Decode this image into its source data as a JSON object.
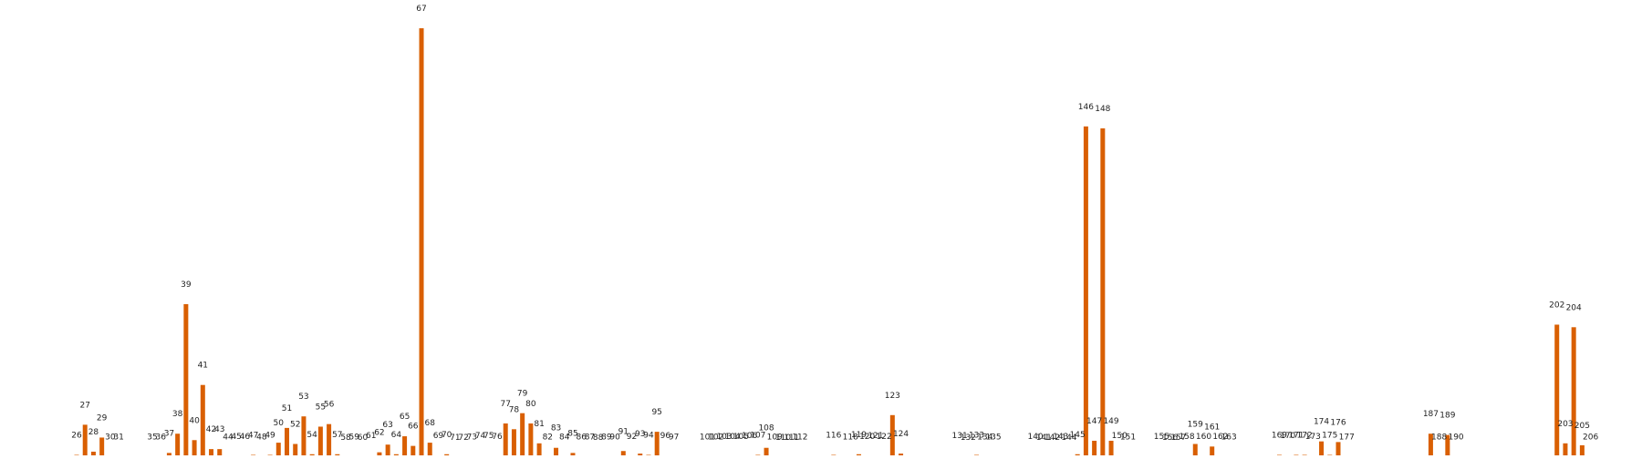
{
  "chart_data": {
    "type": "bar",
    "title": "",
    "xlabel": "",
    "ylabel": "",
    "ylim": [
      0,
      68
    ],
    "bar_color": "#d95f02",
    "grid": false,
    "legend": "none",
    "axes_visible": false,
    "x_range": [
      15,
      220
    ],
    "points": [
      {
        "x": 26,
        "v": 0.5
      },
      {
        "x": 27,
        "v": 5.2
      },
      {
        "x": 28,
        "v": 1.0
      },
      {
        "x": 29,
        "v": 3.2
      },
      {
        "x": 30,
        "v": 0.2
      },
      {
        "x": 31,
        "v": 0.2
      },
      {
        "x": 35,
        "v": 0.2
      },
      {
        "x": 36,
        "v": 0.2
      },
      {
        "x": 37,
        "v": 0.8
      },
      {
        "x": 38,
        "v": 3.8
      },
      {
        "x": 39,
        "v": 24.0
      },
      {
        "x": 40,
        "v": 2.8
      },
      {
        "x": 41,
        "v": 11.4
      },
      {
        "x": 42,
        "v": 1.4
      },
      {
        "x": 43,
        "v": 1.4
      },
      {
        "x": 44,
        "v": 0.2
      },
      {
        "x": 45,
        "v": 0.3
      },
      {
        "x": 46,
        "v": 0.3
      },
      {
        "x": 47,
        "v": 0.5
      },
      {
        "x": 48,
        "v": 0.2
      },
      {
        "x": 49,
        "v": 0.5
      },
      {
        "x": 50,
        "v": 2.4
      },
      {
        "x": 51,
        "v": 4.7
      },
      {
        "x": 52,
        "v": 2.2
      },
      {
        "x": 53,
        "v": 6.5
      },
      {
        "x": 54,
        "v": 0.6
      },
      {
        "x": 55,
        "v": 4.9
      },
      {
        "x": 56,
        "v": 5.3
      },
      {
        "x": 57,
        "v": 0.6
      },
      {
        "x": 58,
        "v": 0.1
      },
      {
        "x": 59,
        "v": 0.2
      },
      {
        "x": 60,
        "v": 0.1
      },
      {
        "x": 61,
        "v": 0.4
      },
      {
        "x": 62,
        "v": 0.9
      },
      {
        "x": 63,
        "v": 2.1
      },
      {
        "x": 64,
        "v": 0.6
      },
      {
        "x": 65,
        "v": 3.4
      },
      {
        "x": 66,
        "v": 1.9
      },
      {
        "x": 67,
        "v": 67.0
      },
      {
        "x": 68,
        "v": 2.4
      },
      {
        "x": 69,
        "v": 0.4
      },
      {
        "x": 70,
        "v": 0.6
      },
      {
        "x": 71,
        "v": 0.1
      },
      {
        "x": 72,
        "v": 0.1
      },
      {
        "x": 73,
        "v": 0.2
      },
      {
        "x": 74,
        "v": 0.4
      },
      {
        "x": 75,
        "v": 0.4
      },
      {
        "x": 76,
        "v": 0.3
      },
      {
        "x": 77,
        "v": 5.4
      },
      {
        "x": 78,
        "v": 4.5
      },
      {
        "x": 79,
        "v": 7.0
      },
      {
        "x": 80,
        "v": 5.4
      },
      {
        "x": 81,
        "v": 2.3
      },
      {
        "x": 82,
        "v": 0.2
      },
      {
        "x": 83,
        "v": 1.6
      },
      {
        "x": 84,
        "v": 0.2
      },
      {
        "x": 85,
        "v": 0.8
      },
      {
        "x": 86,
        "v": 0.2
      },
      {
        "x": 87,
        "v": 0.2
      },
      {
        "x": 88,
        "v": 0.1
      },
      {
        "x": 89,
        "v": 0.2
      },
      {
        "x": 90,
        "v": 0.2
      },
      {
        "x": 91,
        "v": 1.1
      },
      {
        "x": 92,
        "v": 0.3
      },
      {
        "x": 93,
        "v": 0.7
      },
      {
        "x": 94,
        "v": 0.5
      },
      {
        "x": 95,
        "v": 4.1
      },
      {
        "x": 96,
        "v": 0.4
      },
      {
        "x": 97,
        "v": 0.2
      },
      {
        "x": 101,
        "v": 0.2
      },
      {
        "x": 102,
        "v": 0.2
      },
      {
        "x": 103,
        "v": 0.3
      },
      {
        "x": 104,
        "v": 0.3
      },
      {
        "x": 105,
        "v": 0.3
      },
      {
        "x": 106,
        "v": 0.4
      },
      {
        "x": 107,
        "v": 0.5
      },
      {
        "x": 108,
        "v": 1.6
      },
      {
        "x": 109,
        "v": 0.2
      },
      {
        "x": 110,
        "v": 0.1
      },
      {
        "x": 111,
        "v": 0.1
      },
      {
        "x": 112,
        "v": 0.2
      },
      {
        "x": 116,
        "v": 0.5
      },
      {
        "x": 118,
        "v": 0.2
      },
      {
        "x": 119,
        "v": 0.6
      },
      {
        "x": 120,
        "v": 0.3
      },
      {
        "x": 121,
        "v": 0.4
      },
      {
        "x": 122,
        "v": 0.3
      },
      {
        "x": 123,
        "v": 6.7
      },
      {
        "x": 124,
        "v": 0.7
      },
      {
        "x": 131,
        "v": 0.4
      },
      {
        "x": 132,
        "v": 0.1
      },
      {
        "x": 133,
        "v": 0.5
      },
      {
        "x": 134,
        "v": 0.2
      },
      {
        "x": 135,
        "v": 0.2
      },
      {
        "x": 140,
        "v": 0.3
      },
      {
        "x": 141,
        "v": 0.1
      },
      {
        "x": 142,
        "v": 0.1
      },
      {
        "x": 143,
        "v": 0.3
      },
      {
        "x": 144,
        "v": 0.1
      },
      {
        "x": 145,
        "v": 0.6
      },
      {
        "x": 146,
        "v": 51.7
      },
      {
        "x": 147,
        "v": 2.7
      },
      {
        "x": 148,
        "v": 51.4
      },
      {
        "x": 149,
        "v": 2.7
      },
      {
        "x": 150,
        "v": 0.4
      },
      {
        "x": 151,
        "v": 0.2
      },
      {
        "x": 155,
        "v": 0.3
      },
      {
        "x": 156,
        "v": 0.1
      },
      {
        "x": 157,
        "v": 0.1
      },
      {
        "x": 158,
        "v": 0.3
      },
      {
        "x": 159,
        "v": 2.2
      },
      {
        "x": 160,
        "v": 0.3
      },
      {
        "x": 161,
        "v": 1.8
      },
      {
        "x": 162,
        "v": 0.3
      },
      {
        "x": 163,
        "v": 0.2
      },
      {
        "x": 169,
        "v": 0.5
      },
      {
        "x": 170,
        "v": 0.4
      },
      {
        "x": 171,
        "v": 0.5
      },
      {
        "x": 172,
        "v": 0.5
      },
      {
        "x": 173,
        "v": 0.3
      },
      {
        "x": 174,
        "v": 2.6
      },
      {
        "x": 175,
        "v": 0.5
      },
      {
        "x": 176,
        "v": 2.5
      },
      {
        "x": 177,
        "v": 0.2
      },
      {
        "x": 187,
        "v": 3.8
      },
      {
        "x": 188,
        "v": 0.2
      },
      {
        "x": 189,
        "v": 3.6
      },
      {
        "x": 190,
        "v": 0.2
      },
      {
        "x": 202,
        "v": 20.8
      },
      {
        "x": 203,
        "v": 2.3
      },
      {
        "x": 204,
        "v": 20.4
      },
      {
        "x": 205,
        "v": 2.0
      },
      {
        "x": 206,
        "v": 0.2
      }
    ]
  }
}
